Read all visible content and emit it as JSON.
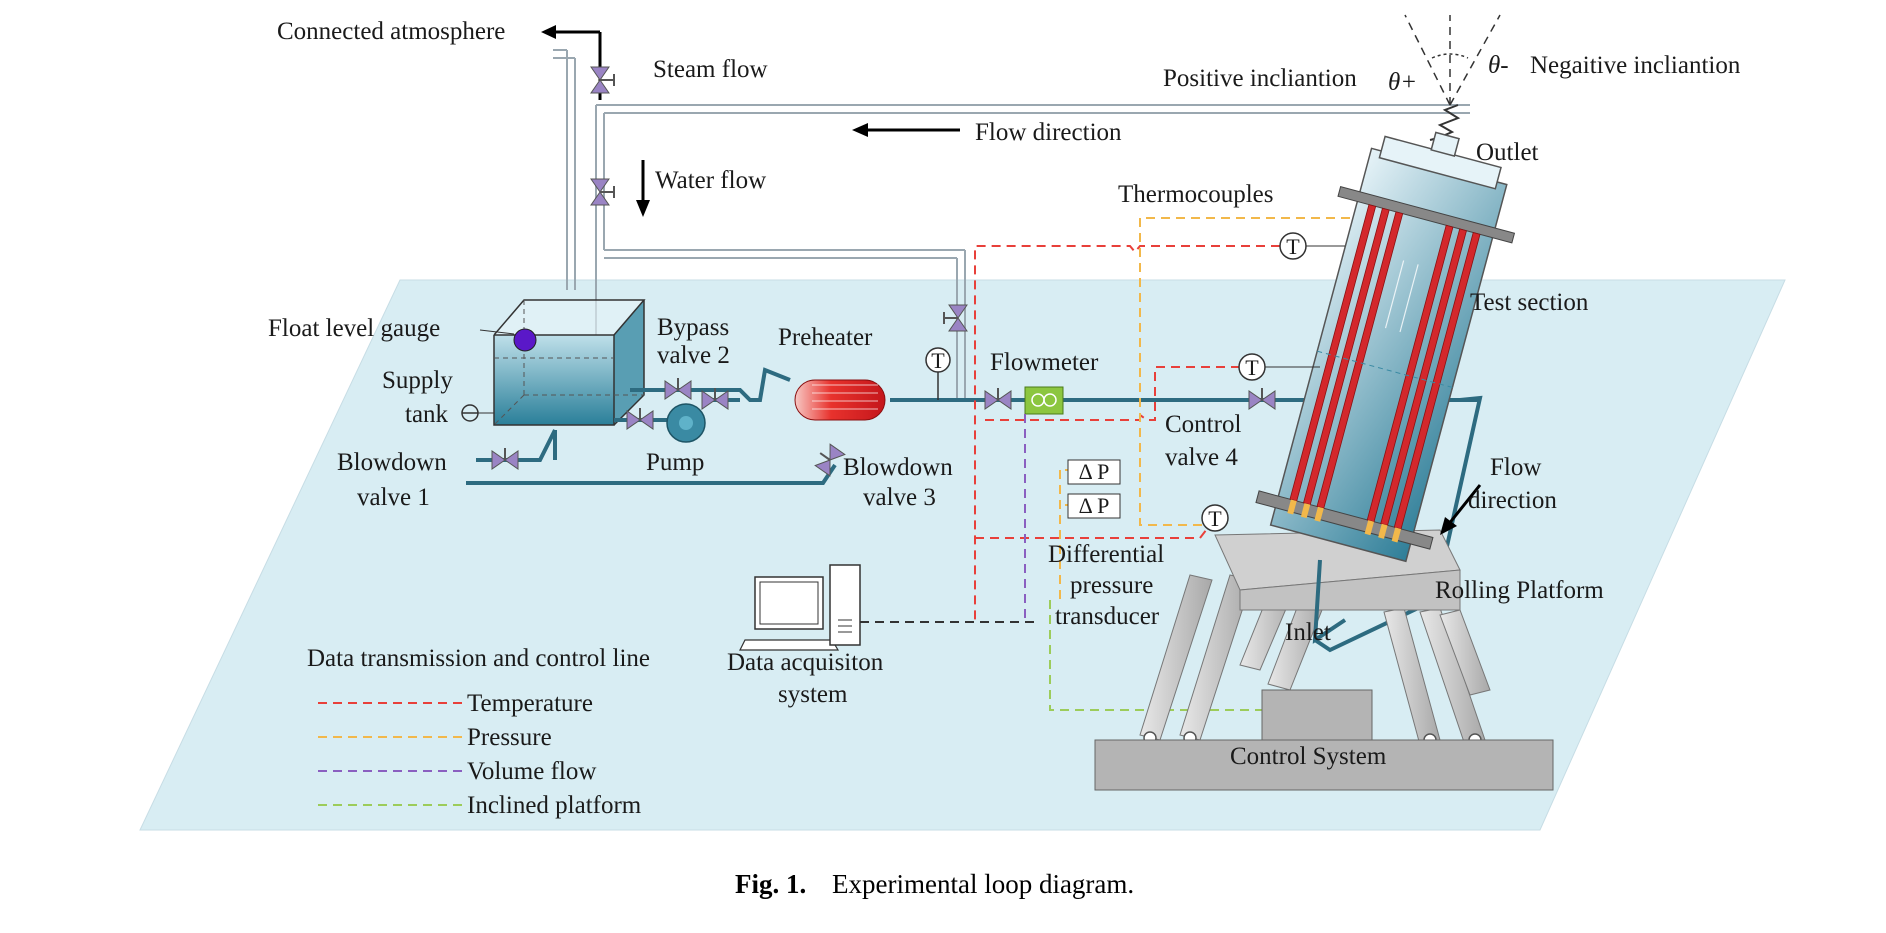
{
  "labels": {
    "connected_atmosphere": "Connected atmosphere",
    "steam_flow": "Steam flow",
    "positive_inclination": "Positive incliantion",
    "theta_plus": "θ+",
    "theta_minus": "θ-",
    "negative_inclination": "Negaitive incliantion",
    "flow_direction_top": "Flow direction",
    "outlet": "Outlet",
    "water_flow": "Water flow",
    "thermocouples": "Thermocouples",
    "test_section": "Test section",
    "float_level_gauge": "Float level gauge",
    "bypass_valve_2_l1": "Bypass",
    "bypass_valve_2_l2": "valve 2",
    "preheater": "Preheater",
    "flowmeter": "Flowmeter",
    "supply_tank_l1": "Supply",
    "supply_tank_l2": "tank",
    "pump": "Pump",
    "blowdown_valve_1_l1": "Blowdown",
    "blowdown_valve_1_l2": "valve 1",
    "blowdown_valve_3_l1": "Blowdown",
    "blowdown_valve_3_l2": "valve 3",
    "control_valve_4_l1": "Control",
    "control_valve_4_l2": "valve 4",
    "flow_direction_right_l1": "Flow",
    "flow_direction_right_l2": "direction",
    "dp_1": "Δ P",
    "dp_2": "Δ P",
    "t_symbol": "T",
    "dpt_l1": "Differential",
    "dpt_l2": "pressure",
    "dpt_l3": "transducer",
    "rolling_platform": "Rolling Platform",
    "inlet": "Inlet",
    "data_acq_l1": "Data acquisiton",
    "data_acq_l2": "system",
    "control_system": "Control System"
  },
  "legend": {
    "title": "Data transmission and control line",
    "items": [
      {
        "label": "Temperature",
        "color": "#e8403a"
      },
      {
        "label": "Pressure",
        "color": "#f2b84a"
      },
      {
        "label": "Volume flow",
        "color": "#8a5fc0"
      },
      {
        "label": "Inclined platform",
        "color": "#9ccc5a"
      }
    ]
  },
  "caption": {
    "label": "Fig. 1.",
    "text": "Experimental loop diagram."
  },
  "colors": {
    "platform": "#d8edf3",
    "pipe": "#2d6b80",
    "heater_rod": "#d3282c",
    "temperature_line": "#e8403a",
    "pressure_line": "#f2b84a",
    "volume_flow_line": "#8a5fc0",
    "inclined_platform_line": "#9ccc5a",
    "data_line": "#333333"
  }
}
